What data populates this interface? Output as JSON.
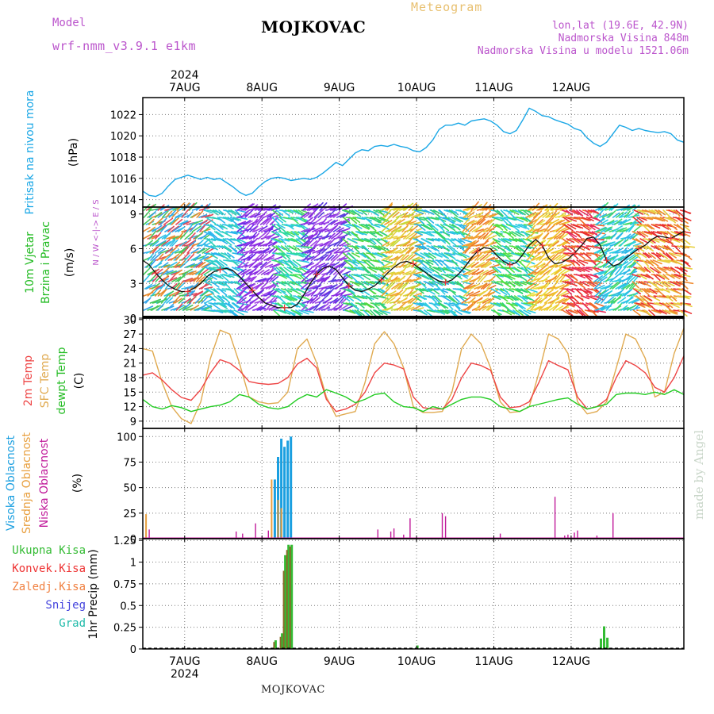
{
  "header": {
    "title": "MOJKOVAC",
    "subtitle": "Meteogram",
    "model_label": "Model",
    "model_name": "wrf-nmm_v3.9.1 e1km",
    "coords": "lon,lat (19.6E, 42.9N)",
    "elevation": "Nadmorska Visina 848m",
    "model_elevation": "Nadmorska Visina u modelu 1521.06m",
    "footer": "MOJKOVAC",
    "watermark": "made by Angel",
    "year": "2024",
    "days": [
      "7AUG",
      "8AUG",
      "9AUG",
      "10AUG",
      "11AUG",
      "12AUG"
    ]
  },
  "panels": {
    "pressure": {
      "label": "Pritisak na nivou mora",
      "unit": "(hPa)"
    },
    "wind": {
      "label1": "10m Vjetar",
      "label2": "Brzina i Pravac",
      "unit": "(m/s)",
      "compass": "N / W <-|-> E / S"
    },
    "temp": {
      "label1": "2m Temp",
      "label2": "SFC Temp",
      "label3": "dewpt Temp",
      "unit": "(C)"
    },
    "cloud": {
      "label1": "Visoka Oblacnost",
      "label2": "Srednja Oblacnost",
      "label3": "Niska Oblacnost",
      "unit": "(%)"
    },
    "precip": {
      "legend": [
        "Ukupna Kisa",
        "Konvek.Kisa",
        "Zaledj.Kisa",
        "Snijeg",
        "Grad"
      ],
      "unit": "1hr Precip (mm)"
    }
  },
  "colors": {
    "pressure": "#1aa7e6",
    "t2m": "#ee4444",
    "tsfc": "#e0aa50",
    "dewpt": "#22cc22",
    "cloud_high": "#1a9fe0",
    "cloud_mid": "#e8a040",
    "cloud_low": "#c01a9a",
    "rain": "#33bb33",
    "conv": "#ee3333",
    "frz": "#f08040",
    "snow": "#4444dd",
    "hail": "#22bbaa",
    "header_purple": "#bb55cc",
    "header_orange": "#e8c070"
  },
  "chart_data": [
    {
      "type": "line",
      "title": "Pritisak na nivou mora",
      "ylabel": "(hPa)",
      "ylim": [
        1013.3,
        1023.6
      ],
      "yticks": [
        1014,
        1016,
        1018,
        1020,
        1022
      ],
      "x_unit": "hours from 7AUG 00:00",
      "xlim": [
        -13,
        155
      ],
      "x": [
        -13,
        -11,
        -9,
        -7,
        -5,
        -3,
        -1,
        1,
        3,
        5,
        7,
        9,
        11,
        13,
        15,
        17,
        19,
        21,
        23,
        25,
        27,
        29,
        31,
        33,
        35,
        37,
        39,
        41,
        43,
        45,
        47,
        49,
        51,
        53,
        55,
        57,
        59,
        61,
        63,
        65,
        67,
        69,
        71,
        73,
        75,
        77,
        79,
        81,
        83,
        85,
        87,
        89,
        91,
        93,
        95,
        97,
        99,
        101,
        103,
        105,
        107,
        109,
        111,
        113,
        115,
        117,
        119,
        121,
        123,
        125,
        127,
        129,
        131,
        133,
        135,
        137,
        139,
        141,
        143,
        145,
        147,
        149,
        151,
        153,
        155
      ],
      "series": [
        {
          "values": [
            1014.8,
            1014.4,
            1014.3,
            1014.6,
            1015.3,
            1015.9,
            1016.1,
            1016.3,
            1016.1,
            1015.9,
            1016.1,
            1015.9,
            1016.0,
            1015.6,
            1015.2,
            1014.7,
            1014.4,
            1014.6,
            1015.2,
            1015.7,
            1016.0,
            1016.1,
            1016.0,
            1015.8,
            1015.9,
            1016.0,
            1015.9,
            1016.1,
            1016.5,
            1017.0,
            1017.5,
            1017.2,
            1017.8,
            1018.4,
            1018.7,
            1018.6,
            1019.0,
            1019.1,
            1019.0,
            1019.2,
            1019.0,
            1018.9,
            1018.6,
            1018.5,
            1018.9,
            1019.6,
            1020.6,
            1021.0,
            1021.0,
            1021.2,
            1021.0,
            1021.4,
            1021.5,
            1021.6,
            1021.4,
            1021.0,
            1020.4,
            1020.2,
            1020.5,
            1021.5,
            1022.6,
            1022.3,
            1021.9,
            1021.8,
            1021.5,
            1021.3,
            1021.1,
            1020.7,
            1020.5,
            1019.8,
            1019.3,
            1019.0,
            1019.4,
            1020.2,
            1021.0,
            1020.8,
            1020.5,
            1020.7,
            1020.5,
            1020.4,
            1020.3,
            1020.4,
            1020.2,
            1019.6,
            1019.4
          ]
        }
      ]
    },
    {
      "type": "line",
      "title": "10m Vjetar Brzina i Pravac",
      "ylabel": "(m/s)",
      "ylim": [
        0,
        9.6
      ],
      "yticks": [
        0,
        3,
        6,
        9
      ],
      "x_unit": "hours from 7AUG 00:00",
      "x": [
        -13,
        -11,
        -9,
        -7,
        -5,
        -3,
        -1,
        1,
        3,
        5,
        7,
        9,
        11,
        13,
        15,
        17,
        19,
        21,
        23,
        25,
        27,
        29,
        31,
        33,
        35,
        37,
        39,
        41,
        43,
        45,
        47,
        49,
        51,
        53,
        55,
        57,
        59,
        61,
        63,
        65,
        67,
        69,
        71,
        73,
        75,
        77,
        79,
        81,
        83,
        85,
        87,
        89,
        91,
        93,
        95,
        97,
        99,
        101,
        103,
        105,
        107,
        109,
        111,
        113,
        115,
        117,
        119,
        121,
        123,
        125,
        127,
        129,
        131,
        133,
        135,
        137,
        139,
        141,
        143,
        145,
        147,
        149,
        151,
        153,
        155
      ],
      "series": [
        {
          "name": "Brzina",
          "values": [
            5.0,
            4.6,
            3.9,
            3.3,
            2.8,
            2.5,
            2.3,
            2.3,
            2.6,
            3.0,
            3.6,
            4.0,
            4.2,
            4.3,
            4.1,
            3.6,
            3.0,
            2.4,
            1.8,
            1.3,
            1.1,
            0.9,
            0.9,
            0.9,
            1.2,
            2.0,
            3.0,
            3.8,
            4.3,
            4.5,
            4.2,
            3.5,
            2.8,
            2.4,
            2.3,
            2.5,
            2.8,
            3.3,
            3.9,
            4.4,
            4.8,
            4.9,
            4.7,
            4.3,
            3.9,
            3.5,
            3.2,
            3.1,
            3.3,
            3.8,
            4.4,
            5.2,
            5.8,
            6.1,
            6.0,
            5.4,
            4.9,
            4.6,
            4.8,
            5.5,
            6.3,
            6.8,
            6.3,
            5.2,
            4.7,
            4.8,
            5.1,
            5.6,
            6.2,
            6.9,
            7.0,
            6.3,
            5.0,
            4.5,
            4.7,
            5.2,
            5.6,
            6.0,
            6.3,
            6.8,
            7.1,
            7.0,
            6.9,
            7.2,
            7.5
          ]
        }
      ],
      "direction_legend": [
        "N",
        "W",
        "E",
        "S"
      ]
    },
    {
      "type": "line",
      "title": "2m Temp / SFC Temp / dewpt Temp",
      "ylabel": "(C)",
      "ylim": [
        7.5,
        30.3
      ],
      "yticks": [
        9,
        12,
        15,
        18,
        21,
        24,
        27,
        30
      ],
      "x_unit": "hours from 7AUG 00:00",
      "x": [
        -13,
        -10,
        -7,
        -4,
        -1,
        2,
        5,
        8,
        11,
        14,
        17,
        20,
        23,
        26,
        29,
        32,
        35,
        38,
        41,
        44,
        47,
        50,
        53,
        56,
        59,
        62,
        65,
        68,
        71,
        74,
        77,
        80,
        83,
        86,
        89,
        92,
        95,
        98,
        101,
        104,
        107,
        110,
        113,
        116,
        119,
        122,
        125,
        128,
        131,
        134,
        137,
        140,
        143,
        146,
        149,
        152,
        155
      ],
      "series": [
        {
          "name": "2m Temp",
          "values": [
            18.5,
            19.0,
            17.5,
            15.5,
            13.9,
            13.3,
            15.5,
            19.0,
            21.7,
            21.0,
            19.5,
            17.2,
            16.8,
            16.6,
            16.8,
            18.0,
            20.8,
            22.0,
            20.0,
            13.5,
            11.0,
            11.5,
            12.5,
            15.0,
            19.0,
            21.0,
            20.6,
            19.8,
            14.0,
            11.8,
            11.5,
            11.5,
            13.5,
            18.0,
            21.0,
            20.5,
            19.5,
            14.0,
            11.8,
            12.0,
            13.0,
            17.0,
            21.5,
            20.5,
            19.6,
            14.0,
            11.5,
            12.0,
            13.5,
            18.0,
            21.5,
            20.5,
            19.0,
            16.0,
            15.0,
            18.0,
            22.5
          ]
        },
        {
          "name": "SFC Temp",
          "values": [
            24.0,
            23.5,
            17.0,
            12.0,
            9.5,
            8.5,
            13.0,
            22.0,
            27.8,
            27.0,
            21.0,
            14.0,
            13.0,
            12.6,
            12.8,
            15.0,
            24.0,
            26.0,
            21.0,
            14.0,
            10.0,
            10.5,
            11.0,
            17.0,
            25.0,
            27.5,
            25.0,
            20.0,
            12.0,
            10.8,
            10.8,
            11.0,
            15.0,
            24.0,
            27.0,
            25.0,
            20.0,
            13.0,
            10.8,
            11.0,
            12.0,
            19.0,
            27.0,
            26.0,
            23.0,
            13.0,
            10.5,
            11.0,
            13.0,
            20.0,
            27.0,
            26.0,
            22.0,
            14.0,
            15.0,
            23.0,
            28.2
          ]
        },
        {
          "name": "dewpt Temp",
          "values": [
            13.5,
            12.0,
            11.5,
            12.2,
            11.8,
            11.0,
            11.5,
            12.0,
            12.3,
            13.0,
            14.5,
            14.0,
            12.5,
            11.8,
            11.5,
            12.0,
            13.5,
            14.5,
            14.0,
            15.5,
            14.8,
            14.0,
            12.8,
            13.5,
            14.5,
            14.8,
            13.0,
            12.0,
            11.8,
            11.0,
            12.0,
            11.5,
            12.5,
            13.5,
            14.0,
            14.0,
            13.5,
            12.0,
            11.5,
            11.0,
            12.0,
            12.5,
            13.0,
            13.5,
            13.8,
            12.5,
            11.5,
            12.0,
            12.5,
            14.5,
            14.8,
            14.8,
            14.5,
            15.0,
            14.5,
            15.5,
            14.5
          ]
        }
      ]
    },
    {
      "type": "bar",
      "title": "Visoka / Srednja / Niska Oblacnost",
      "ylabel": "(%)",
      "ylim": [
        0,
        108
      ],
      "yticks": [
        0,
        25,
        50,
        75,
        100
      ],
      "x_unit": "hours from 7AUG 00:00",
      "series": [
        {
          "name": "Visoka Oblacnost",
          "x": [
            28,
            29,
            30,
            31,
            32,
            33
          ],
          "values": [
            58,
            80,
            98,
            90,
            96,
            100
          ]
        },
        {
          "name": "Srednja Oblacnost",
          "x": [
            -12,
            27,
            29,
            30
          ],
          "values": [
            24,
            58,
            38,
            30
          ]
        },
        {
          "name": "Niska Oblacnost",
          "x": [
            -11,
            16,
            18,
            22,
            26,
            60,
            64,
            65,
            68,
            70,
            80,
            81,
            98,
            115,
            118,
            119,
            121,
            122,
            128,
            133
          ],
          "values": [
            9,
            7,
            5,
            15,
            8,
            9,
            7,
            10,
            4,
            20,
            25,
            22,
            5,
            41,
            3,
            4,
            6,
            8,
            3,
            25
          ]
        }
      ]
    },
    {
      "type": "bar",
      "title": "1hr Precip",
      "ylabel": "(mm)",
      "ylim": [
        0,
        1.27
      ],
      "yticks": [
        0,
        0.25,
        0.5,
        0.75,
        1,
        1.25
      ],
      "x_unit": "hours from 7AUG 00:00",
      "series": [
        {
          "name": "Ukupna Kisa",
          "x": [
            28,
            30,
            31,
            32,
            33,
            72,
            129,
            130,
            131
          ],
          "values": [
            0.1,
            0.18,
            1.08,
            1.2,
            1.2,
            0.04,
            0.12,
            0.26,
            0.13
          ]
        },
        {
          "name": "Konvek.Kisa",
          "x": [
            28,
            30,
            31,
            32,
            33
          ],
          "values": [
            0.08,
            0.14,
            0.9,
            1.14,
            1.18
          ]
        }
      ]
    }
  ]
}
